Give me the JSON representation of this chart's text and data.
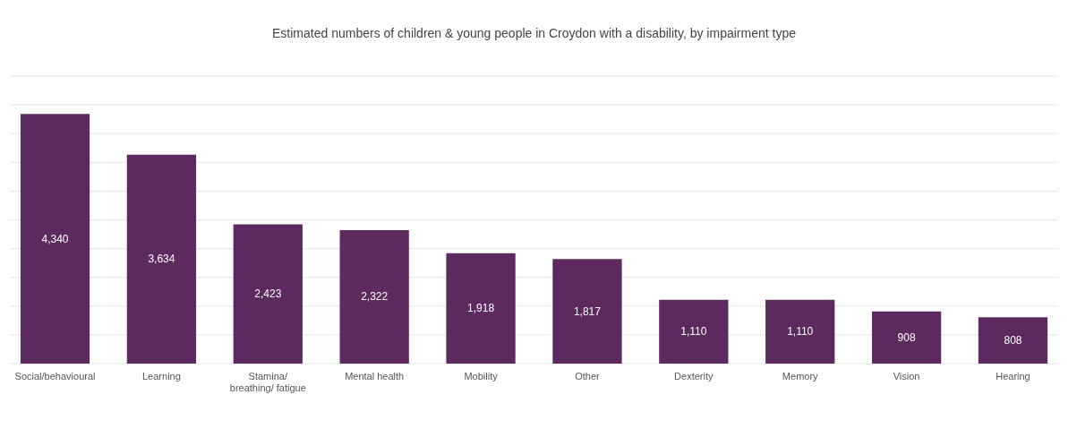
{
  "chart_data": {
    "type": "bar",
    "title": "Estimated numbers of children & young people in Croydon with a disability, by impairment type",
    "categories": [
      "Social/behavioural",
      "Learning",
      "Stamina/\nbreathing/ fatigue",
      "Mental health",
      "Mobility",
      "Other",
      "Dexterity",
      "Memory",
      "Vision",
      "Hearing"
    ],
    "values": [
      4340,
      3634,
      2423,
      2322,
      1918,
      1817,
      1110,
      1110,
      908,
      808
    ],
    "value_labels": [
      "4,340",
      "3,634",
      "2,423",
      "2,322",
      "1,918",
      "1,817",
      "1,110",
      "1,110",
      "908",
      "808"
    ],
    "color": "#5c2a5e",
    "grid": "y",
    "tick_labels": "x",
    "ylim": [
      0,
      5000
    ],
    "yticks": [
      {
        "value": 0,
        "label": null
      },
      {
        "value": 500,
        "label": null
      },
      {
        "value": 1000,
        "label": null
      },
      {
        "value": 1500,
        "label": null
      },
      {
        "value": 2000,
        "label": null
      },
      {
        "value": 2500,
        "label": null
      },
      {
        "value": 3000,
        "label": null
      },
      {
        "value": 3500,
        "label": null
      },
      {
        "value": 4000,
        "label": null
      },
      {
        "value": 4500,
        "label": null
      },
      {
        "value": 5000,
        "label": null
      }
    ]
  }
}
